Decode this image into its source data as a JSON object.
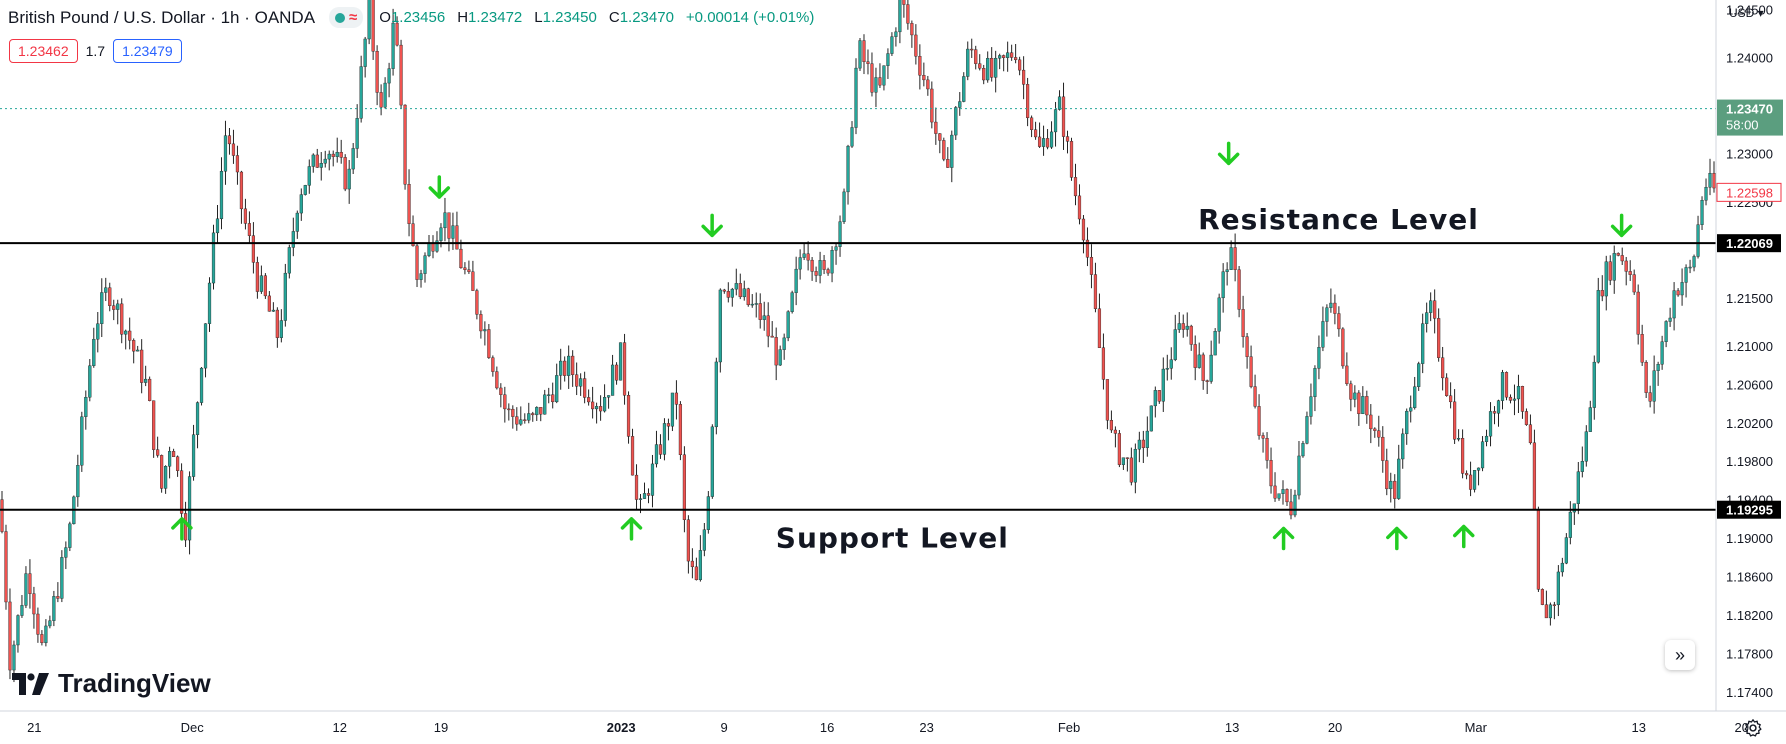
{
  "header": {
    "symbol": "British Pound / U.S. Dollar · 1h · OANDA",
    "ohlc": [
      {
        "k": "O",
        "v": "1.23456"
      },
      {
        "k": "H",
        "v": "1.23472"
      },
      {
        "k": "L",
        "v": "1.23450"
      },
      {
        "k": "C",
        "v": "1.23470"
      },
      {
        "k": "",
        "v": "+0.00014 (+0.01%)"
      }
    ],
    "bid": "1.23462",
    "spread": "1.7",
    "ask": "1.23479",
    "currency": "USD"
  },
  "branding": {
    "logo_text": "TradingView",
    "logo_icon": "tradingview-logo-icon"
  },
  "icons": {
    "scroll": "chevrons-right-icon",
    "settings": "gear-icon"
  },
  "colors": {
    "up": "#089981",
    "down": "#f23645",
    "arrows": "#22cc22",
    "last_price": "#26a69a",
    "level_line": "#000000"
  },
  "chart_data": {
    "type": "candlestick",
    "timeframe": "1h",
    "y_range": [
      1.172,
      1.246
    ],
    "price_ticks": [
      "1.24500",
      "1.24000",
      "1.23000",
      "1.22500",
      "1.21500",
      "1.21000",
      "1.20600",
      "1.20200",
      "1.19800",
      "1.19400",
      "1.19000",
      "1.18600",
      "1.18200",
      "1.17800",
      "1.17400"
    ],
    "x_labels": [
      {
        "label": "21",
        "bold": false
      },
      {
        "label": "Dec",
        "bold": false
      },
      {
        "label": "12",
        "bold": false
      },
      {
        "label": "19",
        "bold": false
      },
      {
        "label": "2023",
        "bold": true
      },
      {
        "label": "9",
        "bold": false
      },
      {
        "label": "16",
        "bold": false
      },
      {
        "label": "23",
        "bold": false
      },
      {
        "label": "Feb",
        "bold": false
      },
      {
        "label": "13",
        "bold": false
      },
      {
        "label": "20",
        "bold": false
      },
      {
        "label": "Mar",
        "bold": false
      },
      {
        "label": "13",
        "bold": false
      },
      {
        "label": "20",
        "bold": false
      }
    ],
    "levels": [
      {
        "name": "Resistance Level",
        "price": 1.22069,
        "label": "1.22069"
      },
      {
        "name": "Support Level",
        "price": 1.19295,
        "label": "1.19295"
      }
    ],
    "last_price": {
      "value": 1.2347,
      "label": "1.23470",
      "countdown": "58:00"
    },
    "marker_price": {
      "value": 1.22598,
      "label": "1.22598"
    },
    "path_points": [
      [
        0,
        1.194
      ],
      [
        0.006,
        1.177
      ],
      [
        0.016,
        1.187
      ],
      [
        0.025,
        1.178
      ],
      [
        0.04,
        1.19
      ],
      [
        0.055,
        1.212
      ],
      [
        0.063,
        1.216
      ],
      [
        0.075,
        1.211
      ],
      [
        0.085,
        1.206
      ],
      [
        0.094,
        1.195
      ],
      [
        0.1,
        1.201
      ],
      [
        0.108,
        1.191
      ],
      [
        0.118,
        1.21
      ],
      [
        0.132,
        1.233
      ],
      [
        0.14,
        1.225
      ],
      [
        0.15,
        1.217
      ],
      [
        0.162,
        1.211
      ],
      [
        0.174,
        1.226
      ],
      [
        0.19,
        1.231
      ],
      [
        0.203,
        1.227
      ],
      [
        0.215,
        1.245
      ],
      [
        0.222,
        1.234
      ],
      [
        0.23,
        1.244
      ],
      [
        0.237,
        1.225
      ],
      [
        0.243,
        1.217
      ],
      [
        0.258,
        1.224
      ],
      [
        0.27,
        1.218
      ],
      [
        0.282,
        1.212
      ],
      [
        0.295,
        1.203
      ],
      [
        0.31,
        1.202
      ],
      [
        0.33,
        1.208
      ],
      [
        0.35,
        1.204
      ],
      [
        0.362,
        1.209
      ],
      [
        0.372,
        1.192
      ],
      [
        0.382,
        1.198
      ],
      [
        0.394,
        1.205
      ],
      [
        0.4,
        1.188
      ],
      [
        0.406,
        1.185
      ],
      [
        0.412,
        1.193
      ],
      [
        0.42,
        1.217
      ],
      [
        0.432,
        1.215
      ],
      [
        0.444,
        1.213
      ],
      [
        0.455,
        1.208
      ],
      [
        0.468,
        1.221
      ],
      [
        0.48,
        1.217
      ],
      [
        0.492,
        1.225
      ],
      [
        0.5,
        1.241
      ],
      [
        0.512,
        1.236
      ],
      [
        0.525,
        1.246
      ],
      [
        0.54,
        1.237
      ],
      [
        0.55,
        1.228
      ],
      [
        0.565,
        1.241
      ],
      [
        0.578,
        1.238
      ],
      [
        0.592,
        1.241
      ],
      [
        0.605,
        1.23
      ],
      [
        0.618,
        1.235
      ],
      [
        0.625,
        1.227
      ],
      [
        0.631,
        1.223
      ],
      [
        0.642,
        1.208
      ],
      [
        0.648,
        1.2
      ],
      [
        0.66,
        1.197
      ],
      [
        0.668,
        1.201
      ],
      [
        0.68,
        1.208
      ],
      [
        0.69,
        1.213
      ],
      [
        0.702,
        1.206
      ],
      [
        0.716,
        1.22
      ],
      [
        0.722,
        1.215
      ],
      [
        0.73,
        1.204
      ],
      [
        0.74,
        1.196
      ],
      [
        0.752,
        1.193
      ],
      [
        0.762,
        1.204
      ],
      [
        0.775,
        1.215
      ],
      [
        0.788,
        1.205
      ],
      [
        0.8,
        1.202
      ],
      [
        0.812,
        1.194
      ],
      [
        0.823,
        1.206
      ],
      [
        0.833,
        1.214
      ],
      [
        0.843,
        1.206
      ],
      [
        0.855,
        1.195
      ],
      [
        0.864,
        1.2
      ],
      [
        0.874,
        1.206
      ],
      [
        0.884,
        1.205
      ],
      [
        0.892,
        1.199
      ],
      [
        0.897,
        1.182
      ],
      [
        0.905,
        1.183
      ],
      [
        0.916,
        1.193
      ],
      [
        0.925,
        1.201
      ],
      [
        0.932,
        1.216
      ],
      [
        0.943,
        1.22
      ],
      [
        0.952,
        1.217
      ],
      [
        0.96,
        1.203
      ],
      [
        0.968,
        1.21
      ],
      [
        0.976,
        1.216
      ],
      [
        0.986,
        1.218
      ],
      [
        0.993,
        1.227
      ],
      [
        1.0,
        1.226
      ]
    ],
    "arrows": [
      {
        "dir": "up",
        "x": 0.106,
        "price": 1.192
      },
      {
        "dir": "down",
        "x": 0.256,
        "price": 1.2255
      },
      {
        "dir": "up",
        "x": 0.368,
        "price": 1.192
      },
      {
        "dir": "down",
        "x": 0.415,
        "price": 1.2215
      },
      {
        "dir": "down",
        "x": 0.716,
        "price": 1.229
      },
      {
        "dir": "up",
        "x": 0.748,
        "price": 1.191
      },
      {
        "dir": "up",
        "x": 0.814,
        "price": 1.191
      },
      {
        "dir": "up",
        "x": 0.853,
        "price": 1.1912
      },
      {
        "dir": "down",
        "x": 0.945,
        "price": 1.2215
      }
    ]
  }
}
